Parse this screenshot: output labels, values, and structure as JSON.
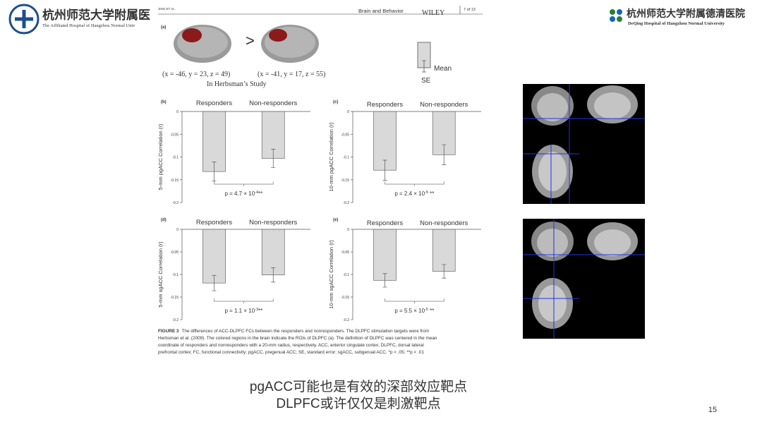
{
  "header": {
    "left_name": "杭州师范大学附属医",
    "left_sub": "The Affiliated Hospital of Hangzhou Normal Univ",
    "right_name": "杭州师范大学附属德清医院",
    "right_sub": "DeQing Hospital of Hangzhou Normal University"
  },
  "paper": {
    "running_head": "JING ET AL.",
    "journal": "Brain and Behavior",
    "publisher": "WILEY",
    "page": "7 of 13"
  },
  "panel_a": {
    "label": "(a)",
    "comparison": ">",
    "coord_left": "(x = -46, y = 23, z = 49)",
    "coord_right": "(x = -41, y = 17, z = 55)",
    "study": "In Herbsman’s Study",
    "legend_mean": "Mean",
    "legend_se": "SE"
  },
  "chart_data": [
    {
      "type": "bar",
      "panel": "(b)",
      "categories": [
        "Responders",
        "Non-responders"
      ],
      "values": [
        -0.132,
        -0.103
      ],
      "errors": [
        0.021,
        0.02
      ],
      "color": "#d9d9d9",
      "ylabel": "5-mm pgACC Correlation (r)",
      "ylim": [
        -0.2,
        0
      ],
      "yticks": [
        0,
        -0.05,
        -0.1,
        -0.15,
        -0.2
      ],
      "annotation": {
        "prefix": "p = 4.7 × 10",
        "exponent": "-4",
        "suffix": "**"
      }
    },
    {
      "type": "bar",
      "panel": "(c)",
      "categories": [
        "Responders",
        "Non-responders"
      ],
      "values": [
        -0.129,
        -0.095
      ],
      "errors": [
        0.022,
        0.022
      ],
      "color": "#d9d9d9",
      "ylabel": "10-mm pgACC Correlation (r)",
      "ylim": [
        -0.2,
        0
      ],
      "yticks": [
        0,
        -0.05,
        -0.1,
        -0.15,
        -0.2
      ],
      "annotation": {
        "prefix": "p = 2.4 × 10",
        "exponent": "-5",
        "suffix": " **"
      }
    },
    {
      "type": "bar",
      "panel": "(d)",
      "categories": [
        "Responders",
        "Non-responders"
      ],
      "values": [
        -0.119,
        -0.101
      ],
      "errors": [
        0.017,
        0.016
      ],
      "color": "#d9d9d9",
      "ylabel": "5-mm sgACC Correlation (r)",
      "ylim": [
        -0.2,
        0
      ],
      "yticks": [
        0,
        -0.05,
        -0.1,
        -0.15,
        -0.2
      ],
      "annotation": {
        "prefix": "p = 1.1 × 10",
        "exponent": "-3",
        "suffix": "**"
      }
    },
    {
      "type": "bar",
      "panel": "(e)",
      "categories": [
        "Responders",
        "Non-responders"
      ],
      "values": [
        -0.113,
        -0.093
      ],
      "errors": [
        0.015,
        0.015
      ],
      "color": "#d9d9d9",
      "ylabel": "10-mm sgACC Correlation (r)",
      "ylim": [
        -0.2,
        0
      ],
      "yticks": [
        0,
        -0.05,
        -0.1,
        -0.15,
        -0.2
      ],
      "annotation": {
        "prefix": "p = 5.5 × 10",
        "exponent": "-5",
        "suffix": " **"
      }
    }
  ],
  "caption": {
    "label": "FIGURE 3",
    "lines": [
      "The differences of ACC-DLPFC FCs between the responders and nonresponders. The DLPFC stimulation targets were from",
      "Herbsman et al. (2009). The colored regions in the brain indicate the ROIs of DLPFC (a). The definition of DLPFC was centered in the mean",
      "coordinate of responders and nonresponders with a 20-mm radius, respectively. ACC, anterior cingulate cortex; DLPFC, dorsal lateral",
      "prefrontal cortex; FC, functional connectivity; pgACC, pregenual ACC; SE, standard error; sgACC, subgenual ACC. *p < .05; **p < .01"
    ]
  },
  "slide": {
    "line1": "pgACC可能也是有效的深部效应靶点",
    "line2": "DLPFC或许仅仅是刺激靶点",
    "page_number": "15"
  }
}
